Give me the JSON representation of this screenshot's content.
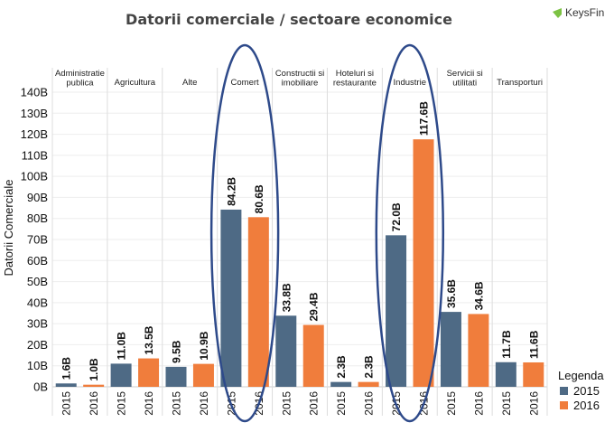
{
  "brand": {
    "name": "KeysFin"
  },
  "chart_data": {
    "type": "bar",
    "title": "Datorii comerciale / sectoare economice",
    "ylabel": "Datorii Comerciale",
    "xlabel": "",
    "ylim": [
      0,
      140
    ],
    "y_ticks": [
      0,
      10,
      20,
      30,
      40,
      50,
      60,
      70,
      80,
      90,
      100,
      110,
      120,
      130,
      140
    ],
    "y_tick_labels": [
      "0B",
      "10B",
      "20B",
      "30B",
      "40B",
      "50B",
      "60B",
      "70B",
      "80B",
      "90B",
      "100B",
      "110B",
      "120B",
      "130B",
      "140B"
    ],
    "categories": [
      "Administratie publica",
      "Agricultura",
      "Alte",
      "Comert",
      "Constructii si imobiliare",
      "Hoteluri si restaurante",
      "Industrie",
      "Servicii si utilitati",
      "Transporturi"
    ],
    "category_lines": [
      [
        "Administratie",
        "publica"
      ],
      [
        "Agricultura"
      ],
      [
        "Alte"
      ],
      [
        "Comert"
      ],
      [
        "Constructii si",
        "imobiliare"
      ],
      [
        "Hoteluri si",
        "restaurante"
      ],
      [
        "Industrie"
      ],
      [
        "Servicii si",
        "utilitati"
      ],
      [
        "Transporturi"
      ]
    ],
    "years": [
      "2015",
      "2016"
    ],
    "series": [
      {
        "name": "2015",
        "color": "#4e6a85",
        "values": [
          1.6,
          11.0,
          9.5,
          84.2,
          33.8,
          2.3,
          72.0,
          35.6,
          11.7
        ],
        "labels": [
          "1.6B",
          "11.0B",
          "9.5B",
          "84.2B",
          "33.8B",
          "2.3B",
          "72.0B",
          "35.6B",
          "11.7B"
        ]
      },
      {
        "name": "2016",
        "color": "#f07d3c",
        "values": [
          1.0,
          13.5,
          10.9,
          80.6,
          29.4,
          2.3,
          117.6,
          34.6,
          11.6
        ],
        "labels": [
          "1.0B",
          "13.5B",
          "10.9B",
          "80.6B",
          "29.4B",
          "2.3B",
          "117.6B",
          "34.6B",
          "11.6B"
        ]
      }
    ],
    "legend": {
      "title": "Legenda",
      "position": "bottom-right",
      "items": [
        "2015",
        "2016"
      ]
    },
    "highlighted_categories": [
      "Comert",
      "Industrie"
    ],
    "highlight_color": "#2e4a8a",
    "grid": true
  }
}
